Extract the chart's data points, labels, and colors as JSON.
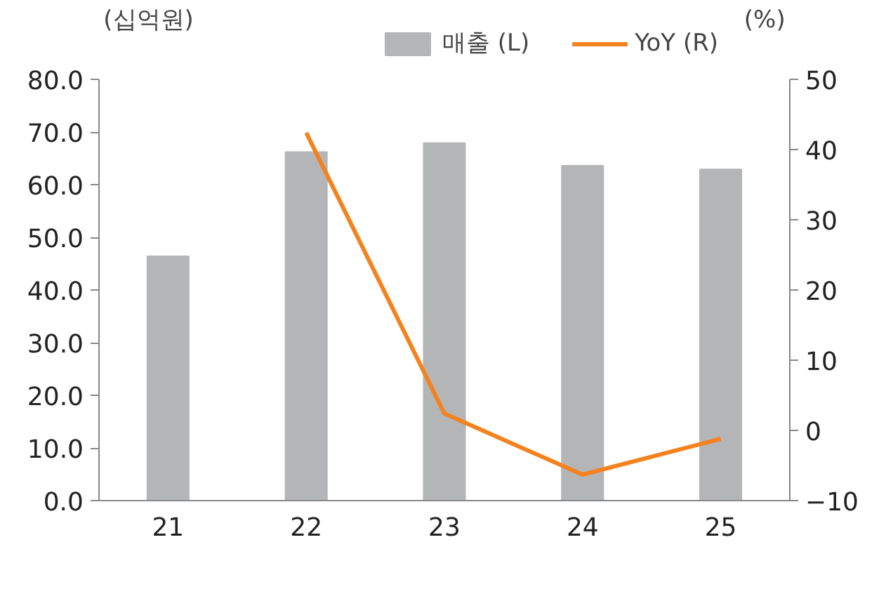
{
  "chart_data": {
    "type": "bar",
    "categories": [
      "21",
      "22",
      "23",
      "24",
      "25"
    ],
    "ylabel": "(십억원)",
    "y2label": "(%)",
    "series": [
      {
        "name": "매출 (L)",
        "color": "#b4b5b7",
        "values": [
          46.4,
          66.2,
          67.9,
          63.6,
          62.9
        ]
      },
      {
        "name": "YoY (R)",
        "type": "line",
        "axis": "y2",
        "color": "#f4821f",
        "values": [
          null,
          42.4,
          2.4,
          -6.3,
          -1.2
        ]
      }
    ],
    "ylim": [
      0,
      80
    ],
    "yticks": [
      {
        "value": 0,
        "label": "0.0"
      },
      {
        "value": 10,
        "label": "10.0"
      },
      {
        "value": 20,
        "label": "20.0"
      },
      {
        "value": 30,
        "label": "30.0"
      },
      {
        "value": 40,
        "label": "40.0"
      },
      {
        "value": 50,
        "label": "50.0"
      },
      {
        "value": 60,
        "label": "60.0"
      },
      {
        "value": 70,
        "label": "70.0"
      },
      {
        "value": 80,
        "label": "80.0"
      }
    ],
    "y2lim": [
      -10,
      50
    ],
    "y2ticks": [
      {
        "value": -10,
        "label": "−10"
      },
      0,
      10,
      20,
      30,
      40,
      50
    ],
    "grid": false,
    "legend": "top",
    "marker": "none"
  }
}
